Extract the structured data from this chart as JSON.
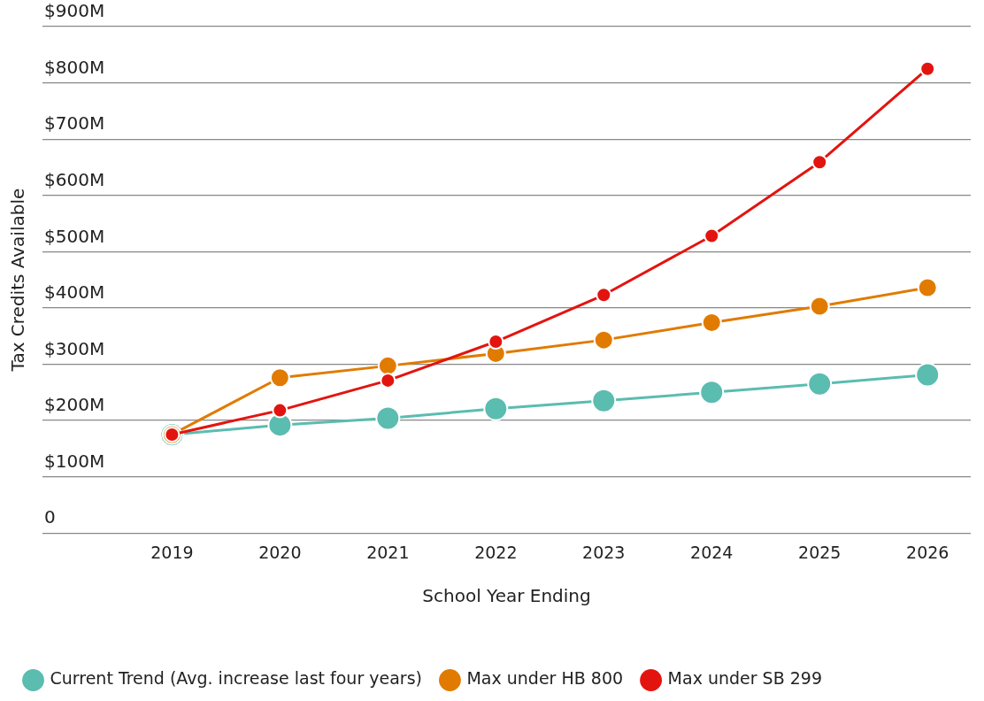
{
  "chart_data": {
    "type": "line",
    "xlabel": "School Year Ending",
    "ylabel": "Tax Credits Available",
    "x": [
      2019,
      2020,
      2021,
      2022,
      2023,
      2024,
      2025,
      2026
    ],
    "xlim": [
      2017.8,
      2026.4
    ],
    "xticks": [
      2019,
      2020,
      2021,
      2022,
      2023,
      2024,
      2025,
      2026
    ],
    "ylim": [
      0,
      900
    ],
    "yticks": [
      0,
      {
        "value": 100,
        "label": "$100M"
      },
      {
        "value": 200,
        "label": "$200M"
      },
      {
        "value": 300,
        "label": "$300M"
      },
      {
        "value": 400,
        "label": "$400M"
      },
      {
        "value": 500,
        "label": "$500M"
      },
      {
        "value": 600,
        "label": "$600M"
      },
      {
        "value": 700,
        "label": "$700M"
      },
      {
        "value": 800,
        "label": "$800M"
      },
      {
        "value": 900,
        "label": "$900M"
      }
    ],
    "grid": "y",
    "legend": "bottom",
    "marker": "circle",
    "line_style": "solid",
    "series": [
      {
        "name": "Current Trend (Avg. increase last four years)",
        "color": "#5bbcb0",
        "values": [
          175,
          192,
          204,
          221,
          235,
          250,
          265,
          281
        ]
      },
      {
        "name": "Max under HB 800",
        "color": "#e07b00",
        "values": [
          175,
          276,
          297,
          319,
          343,
          374,
          403,
          436
        ]
      },
      {
        "name": "Max under SB 299",
        "color": "#e3140f",
        "values": [
          175,
          218,
          271,
          340,
          423,
          528,
          659,
          825
        ]
      }
    ]
  }
}
